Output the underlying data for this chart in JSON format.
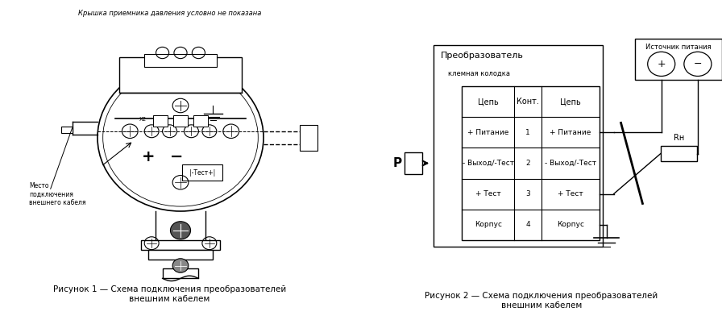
{
  "bg_color": "#ffffff",
  "fig_width": 8.96,
  "fig_height": 3.97,
  "fig1_caption": "Рисунок 1 — Схема подключения преобразователей\nвнешним кабелем",
  "fig2_caption": "Рисунок 2 — Схема подключения преобразователей\nвнешним кабелем",
  "top_note": "Крышка приемника давления условно не показана",
  "table_header_col1": "Цепь",
  "table_header_col2": "Конт.",
  "table_header_col3": "Цепь",
  "table_rows": [
    [
      "+ Питание",
      "1",
      "+ Питание"
    ],
    [
      "- Выход/-Тест",
      "2",
      "- Выход/-Тест"
    ],
    [
      "+ Тест",
      "3",
      "+ Тест"
    ],
    [
      "Корпус",
      "4",
      "Корпус"
    ]
  ],
  "preobr_title": "Преобразователь",
  "preobr_subtitle": "клемная колодка",
  "source_title": "Источник питания",
  "rh_label": "Rн",
  "line_color": "#000000",
  "text_color": "#000000"
}
